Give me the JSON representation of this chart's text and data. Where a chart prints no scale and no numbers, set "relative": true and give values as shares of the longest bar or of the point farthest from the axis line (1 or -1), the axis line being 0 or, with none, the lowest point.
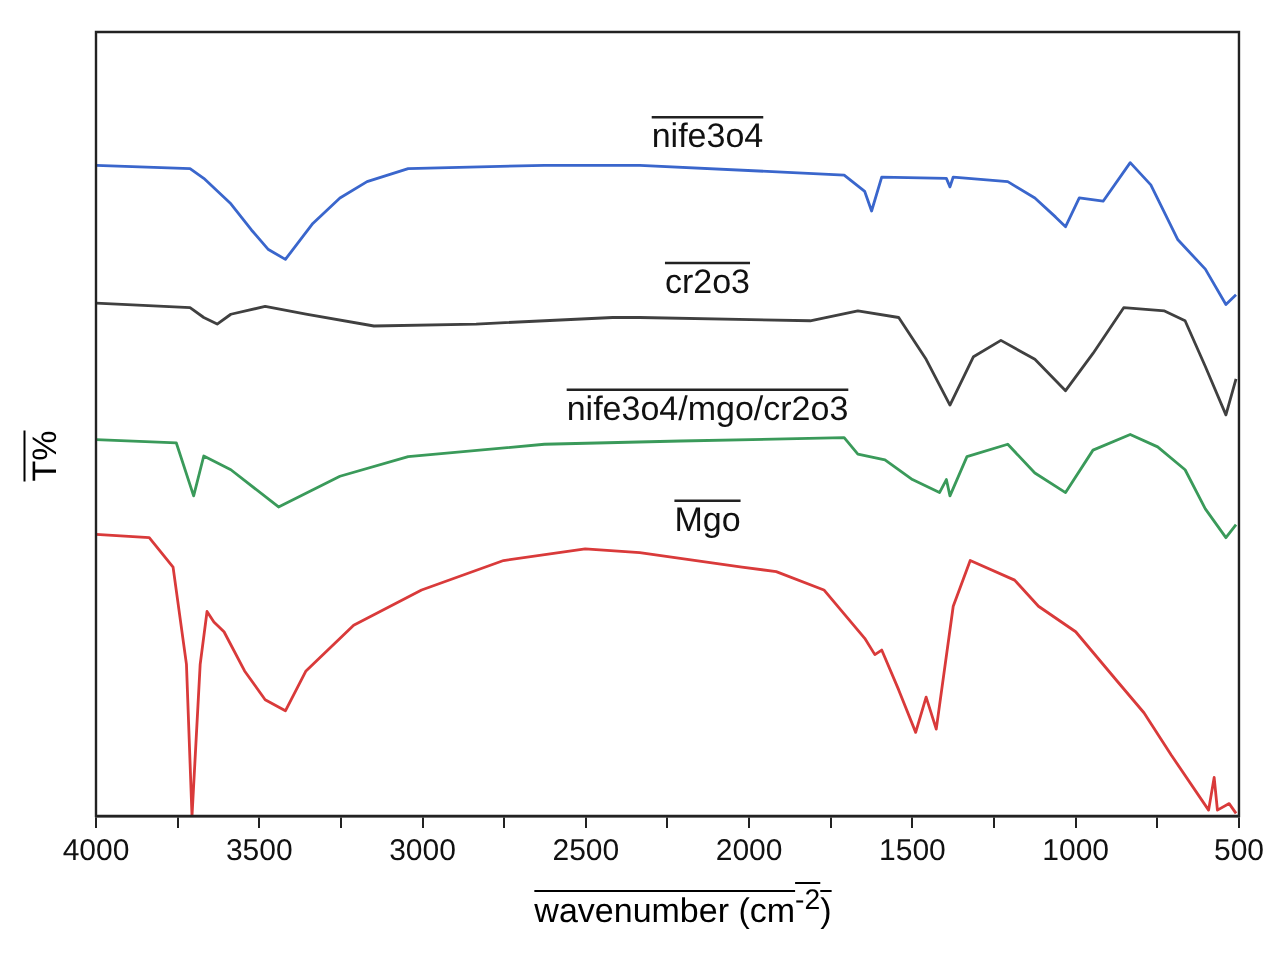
{
  "chart_data": {
    "type": "line",
    "relative": true,
    "xlabel": "wavenumber (cm$^{-2}$)",
    "ylabel": "T%",
    "xlim": [
      4000,
      500
    ],
    "xticks": [
      4000,
      {
        "value": 3750,
        "label": null
      },
      3500,
      {
        "value": 3250,
        "label": null
      },
      3000,
      {
        "value": 2750,
        "label": null
      },
      2500,
      {
        "value": 2250,
        "label": null
      },
      2000,
      {
        "value": 1750,
        "label": null
      },
      1500,
      {
        "value": 1250,
        "label": null
      },
      1000,
      {
        "value": 750,
        "label": null
      },
      500
    ],
    "legend": false,
    "marker": "none",
    "line_style": "solid",
    "grid": false,
    "series": [
      {
        "name": "nife3o4",
        "color": "#3a66cc",
        "x": [
          4000,
          3712,
          3670,
          3587,
          3524,
          3472,
          3420,
          3336,
          3253,
          3170,
          3044,
          2627,
          2335,
          1709,
          1646,
          1625,
          1594,
          1396,
          1385,
          1375,
          1208,
          1125,
          1062,
          1031,
          989,
          916,
          833,
          770,
          687,
          603,
          540,
          509
        ],
        "values": [
          0.996,
          0.991,
          0.976,
          0.937,
          0.897,
          0.867,
          0.852,
          0.907,
          0.946,
          0.971,
          0.991,
          0.996,
          0.996,
          0.981,
          0.956,
          0.926,
          0.978,
          0.976,
          0.963,
          0.978,
          0.971,
          0.946,
          0.917,
          0.902,
          0.946,
          0.941,
          1.0,
          0.966,
          0.882,
          0.837,
          0.783,
          0.798
        ]
      },
      {
        "name": "cr2o3",
        "color": "#404040",
        "x": [
          4000,
          3712,
          3670,
          3629,
          3587,
          3482,
          3357,
          3149,
          2836,
          2418,
          2335,
          1813,
          1667,
          1542,
          1458,
          1385,
          1313,
          1229,
          1125,
          1031,
          947,
          853,
          728,
          665,
          603,
          540,
          509
        ],
        "values": [
          0.785,
          0.778,
          0.763,
          0.753,
          0.768,
          0.78,
          0.768,
          0.75,
          0.753,
          0.763,
          0.763,
          0.758,
          0.773,
          0.763,
          0.699,
          0.629,
          0.703,
          0.728,
          0.699,
          0.651,
          0.708,
          0.778,
          0.773,
          0.758,
          0.688,
          0.614,
          0.669
        ]
      },
      {
        "name": "nife3o4/mgo/cr2o3",
        "color": "#3a9a5a",
        "x": [
          4000,
          3754,
          3701,
          3670,
          3587,
          3441,
          3253,
          3044,
          2627,
          2210,
          1709,
          1667,
          1584,
          1500,
          1417,
          1396,
          1385,
          1333,
          1208,
          1125,
          1031,
          947,
          833,
          749,
          665,
          603,
          540,
          509
        ],
        "values": [
          0.576,
          0.571,
          0.49,
          0.551,
          0.53,
          0.473,
          0.52,
          0.55,
          0.569,
          0.574,
          0.579,
          0.554,
          0.545,
          0.515,
          0.495,
          0.515,
          0.49,
          0.55,
          0.569,
          0.525,
          0.495,
          0.56,
          0.584,
          0.565,
          0.53,
          0.47,
          0.426,
          0.446
        ]
      },
      {
        "name": "Mgo",
        "color": "#d93a3a",
        "x": [
          4000,
          3837,
          3764,
          3723,
          3706,
          3681,
          3660,
          3639,
          3608,
          3545,
          3482,
          3420,
          3357,
          3211,
          3003,
          2752,
          2502,
          2335,
          2022,
          1917,
          1771,
          1646,
          1615,
          1594,
          1542,
          1490,
          1458,
          1427,
          1375,
          1323,
          1187,
          1114,
          1000,
          874,
          791,
          707,
          593,
          576,
          566,
          530,
          509
        ],
        "values": [
          0.431,
          0.426,
          0.381,
          0.232,
          0,
          0.232,
          0.313,
          0.297,
          0.282,
          0.222,
          0.178,
          0.161,
          0.222,
          0.292,
          0.346,
          0.391,
          0.409,
          0.403,
          0.381,
          0.374,
          0.346,
          0.272,
          0.247,
          0.254,
          0.193,
          0.128,
          0.182,
          0.133,
          0.321,
          0.391,
          0.361,
          0.321,
          0.282,
          0.207,
          0.158,
          0.093,
          0.009,
          0.059,
          0.009,
          0.019,
          0.004
        ]
      }
    ]
  }
}
